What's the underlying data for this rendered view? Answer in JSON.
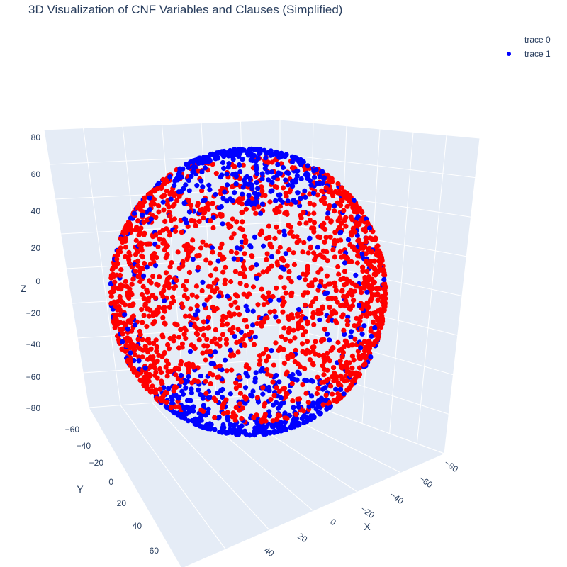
{
  "chart_data": {
    "type": "scatter",
    "title": "3D Visualization of CNF Variables and Clauses (Simplified)",
    "xlabel": "X",
    "ylabel": "Y",
    "zlabel": "Z",
    "x_ticks": [
      "−80",
      "−60",
      "−40",
      "−20",
      "0",
      "20",
      "40"
    ],
    "y_ticks": [
      "−60",
      "−40",
      "−20",
      "0",
      "20",
      "40",
      "60"
    ],
    "z_ticks": [
      "−80",
      "−60",
      "−40",
      "−20",
      "0",
      "20",
      "40",
      "60",
      "80"
    ],
    "xlim": [
      -85,
      55
    ],
    "ylim": [
      -70,
      70
    ],
    "zlim": [
      -80,
      80
    ],
    "grid": true,
    "legend_position": "top-right",
    "series": [
      {
        "name": "trace 0",
        "mode": "lines",
        "color": "#b8c7dc"
      },
      {
        "name": "trace 1",
        "mode": "markers",
        "colors": [
          "#0000ff",
          "#ff0000"
        ],
        "shape": "sphere-with-red-bands",
        "x_range": [
          -72,
          72
        ],
        "y_range": [
          -72,
          72
        ],
        "z_range": [
          -70,
          70
        ]
      }
    ]
  },
  "legend": {
    "items": [
      {
        "label": "trace 0"
      },
      {
        "label": "trace 1"
      }
    ]
  }
}
